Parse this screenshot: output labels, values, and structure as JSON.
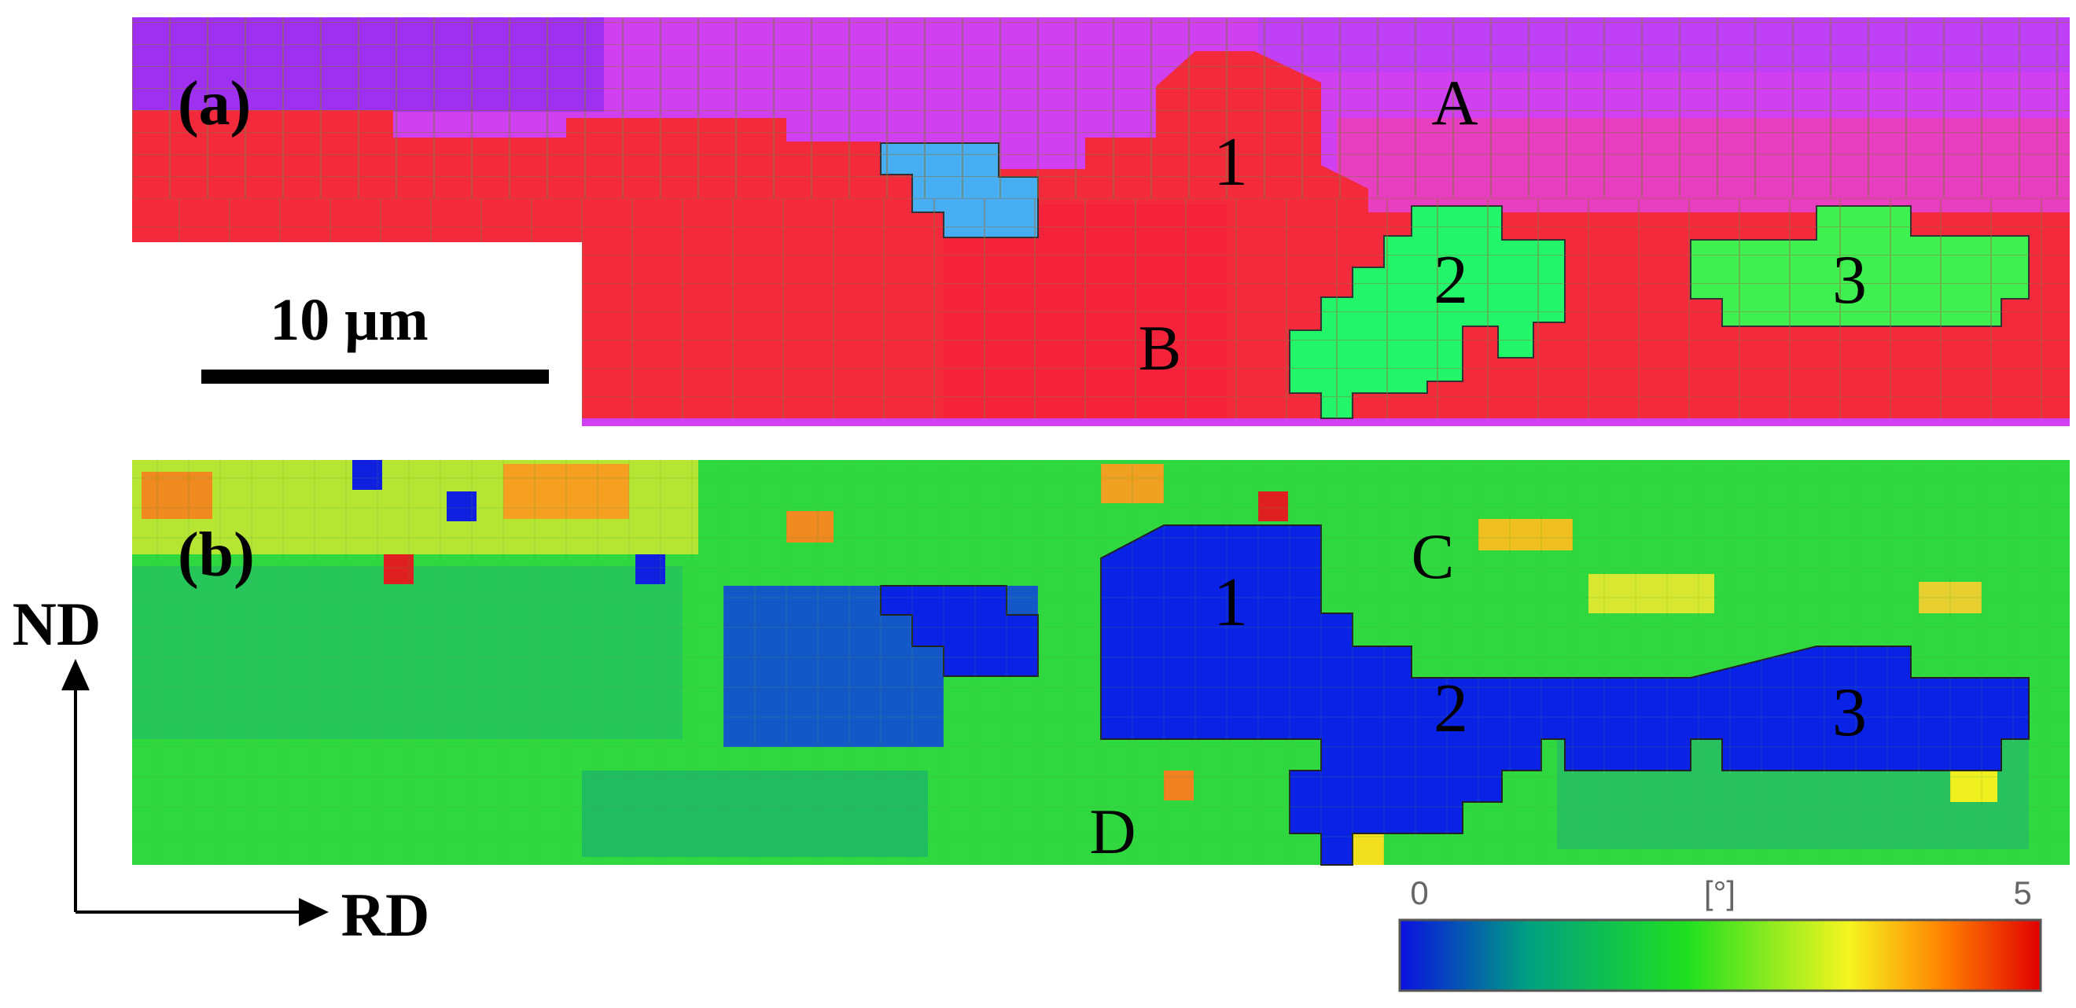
{
  "panel_a": {
    "label": "(a)",
    "region_labels": [
      "A",
      "B"
    ],
    "grain_labels": [
      "1",
      "2",
      "3"
    ],
    "scale_bar": "10 μm"
  },
  "panel_b": {
    "label": "(b)",
    "region_labels": [
      "C",
      "D"
    ],
    "grain_labels": [
      "1",
      "2",
      "3"
    ]
  },
  "axes": {
    "vertical": "ND",
    "horizontal": "RD"
  },
  "colorbar": {
    "min": "0",
    "unit": "[°]",
    "max": "5",
    "colors": [
      "#1010e0",
      "#00b070",
      "#20e020",
      "#f0f020",
      "#ff8000",
      "#e00000"
    ]
  },
  "colors": {
    "magenta_band": "#d040f0",
    "red_band": "#f22a3c",
    "blue_grain": "#48aef2",
    "green_grain": "#22f56a",
    "low_misorientation": "#0a22e6"
  }
}
